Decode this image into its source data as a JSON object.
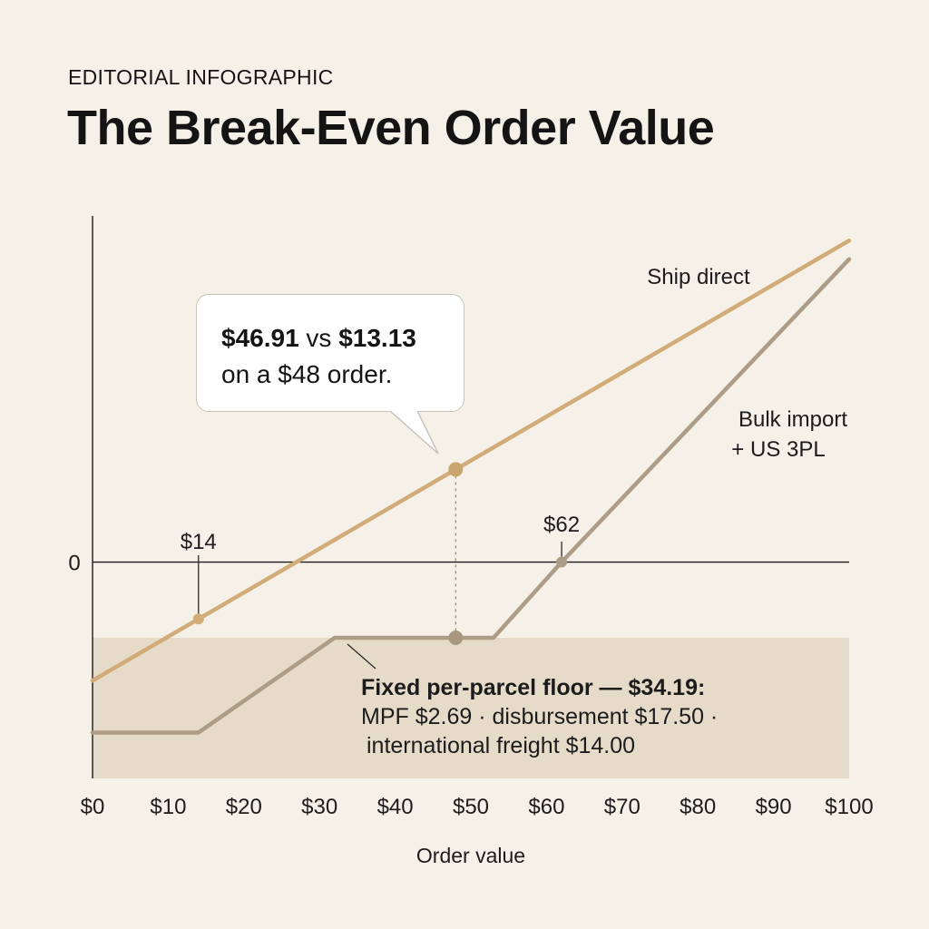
{
  "kicker": "EDITORIAL INFOGRAPHIC",
  "title": "The Break-Even Order Value",
  "colors": {
    "background": "#f6f1e8",
    "ship_direct": "#d2ac78",
    "bulk_import": "#ad9d87",
    "floor_band": "#e6dac9",
    "axis": "#1a1a1a"
  },
  "callout": {
    "value_a": "$46.91",
    "vs": "vs",
    "value_b": "$13.13",
    "line2": "on a $48 order."
  },
  "floor_note": {
    "heading": "Fixed per-parcel floor — $34.19:",
    "line1": "MPF $2.69 · disbursement $17.50 ·",
    "line2": "international freight $14.00"
  },
  "chart_data": {
    "type": "line",
    "xlabel": "Order value",
    "x_ticks": [
      "$0",
      "$10",
      "$20",
      "$30",
      "$40",
      "$50",
      "$60",
      "$70",
      "$80",
      "$90",
      "$100"
    ],
    "xlim": [
      0,
      100
    ],
    "ylim": [
      -50,
      80
    ],
    "y_ticks": [
      "0"
    ],
    "grid": false,
    "series": [
      {
        "name": "Ship direct",
        "x": [
          0,
          100
        ],
        "y": [
          -27.4,
          74.3
        ]
      },
      {
        "name": "Bulk import\n+ US 3PL",
        "x": [
          0,
          14,
          32,
          53,
          62,
          100
        ],
        "y": [
          -39.4,
          -39.4,
          -17.5,
          -17.5,
          0,
          70
        ]
      }
    ],
    "floor_band": {
      "y_from": -50,
      "y_to": -17.5
    },
    "annotations": [
      {
        "label": "$14",
        "x": 14,
        "series": 0
      },
      {
        "label": "$62",
        "x": 62,
        "series": 1
      }
    ],
    "highlight_x": 48
  }
}
